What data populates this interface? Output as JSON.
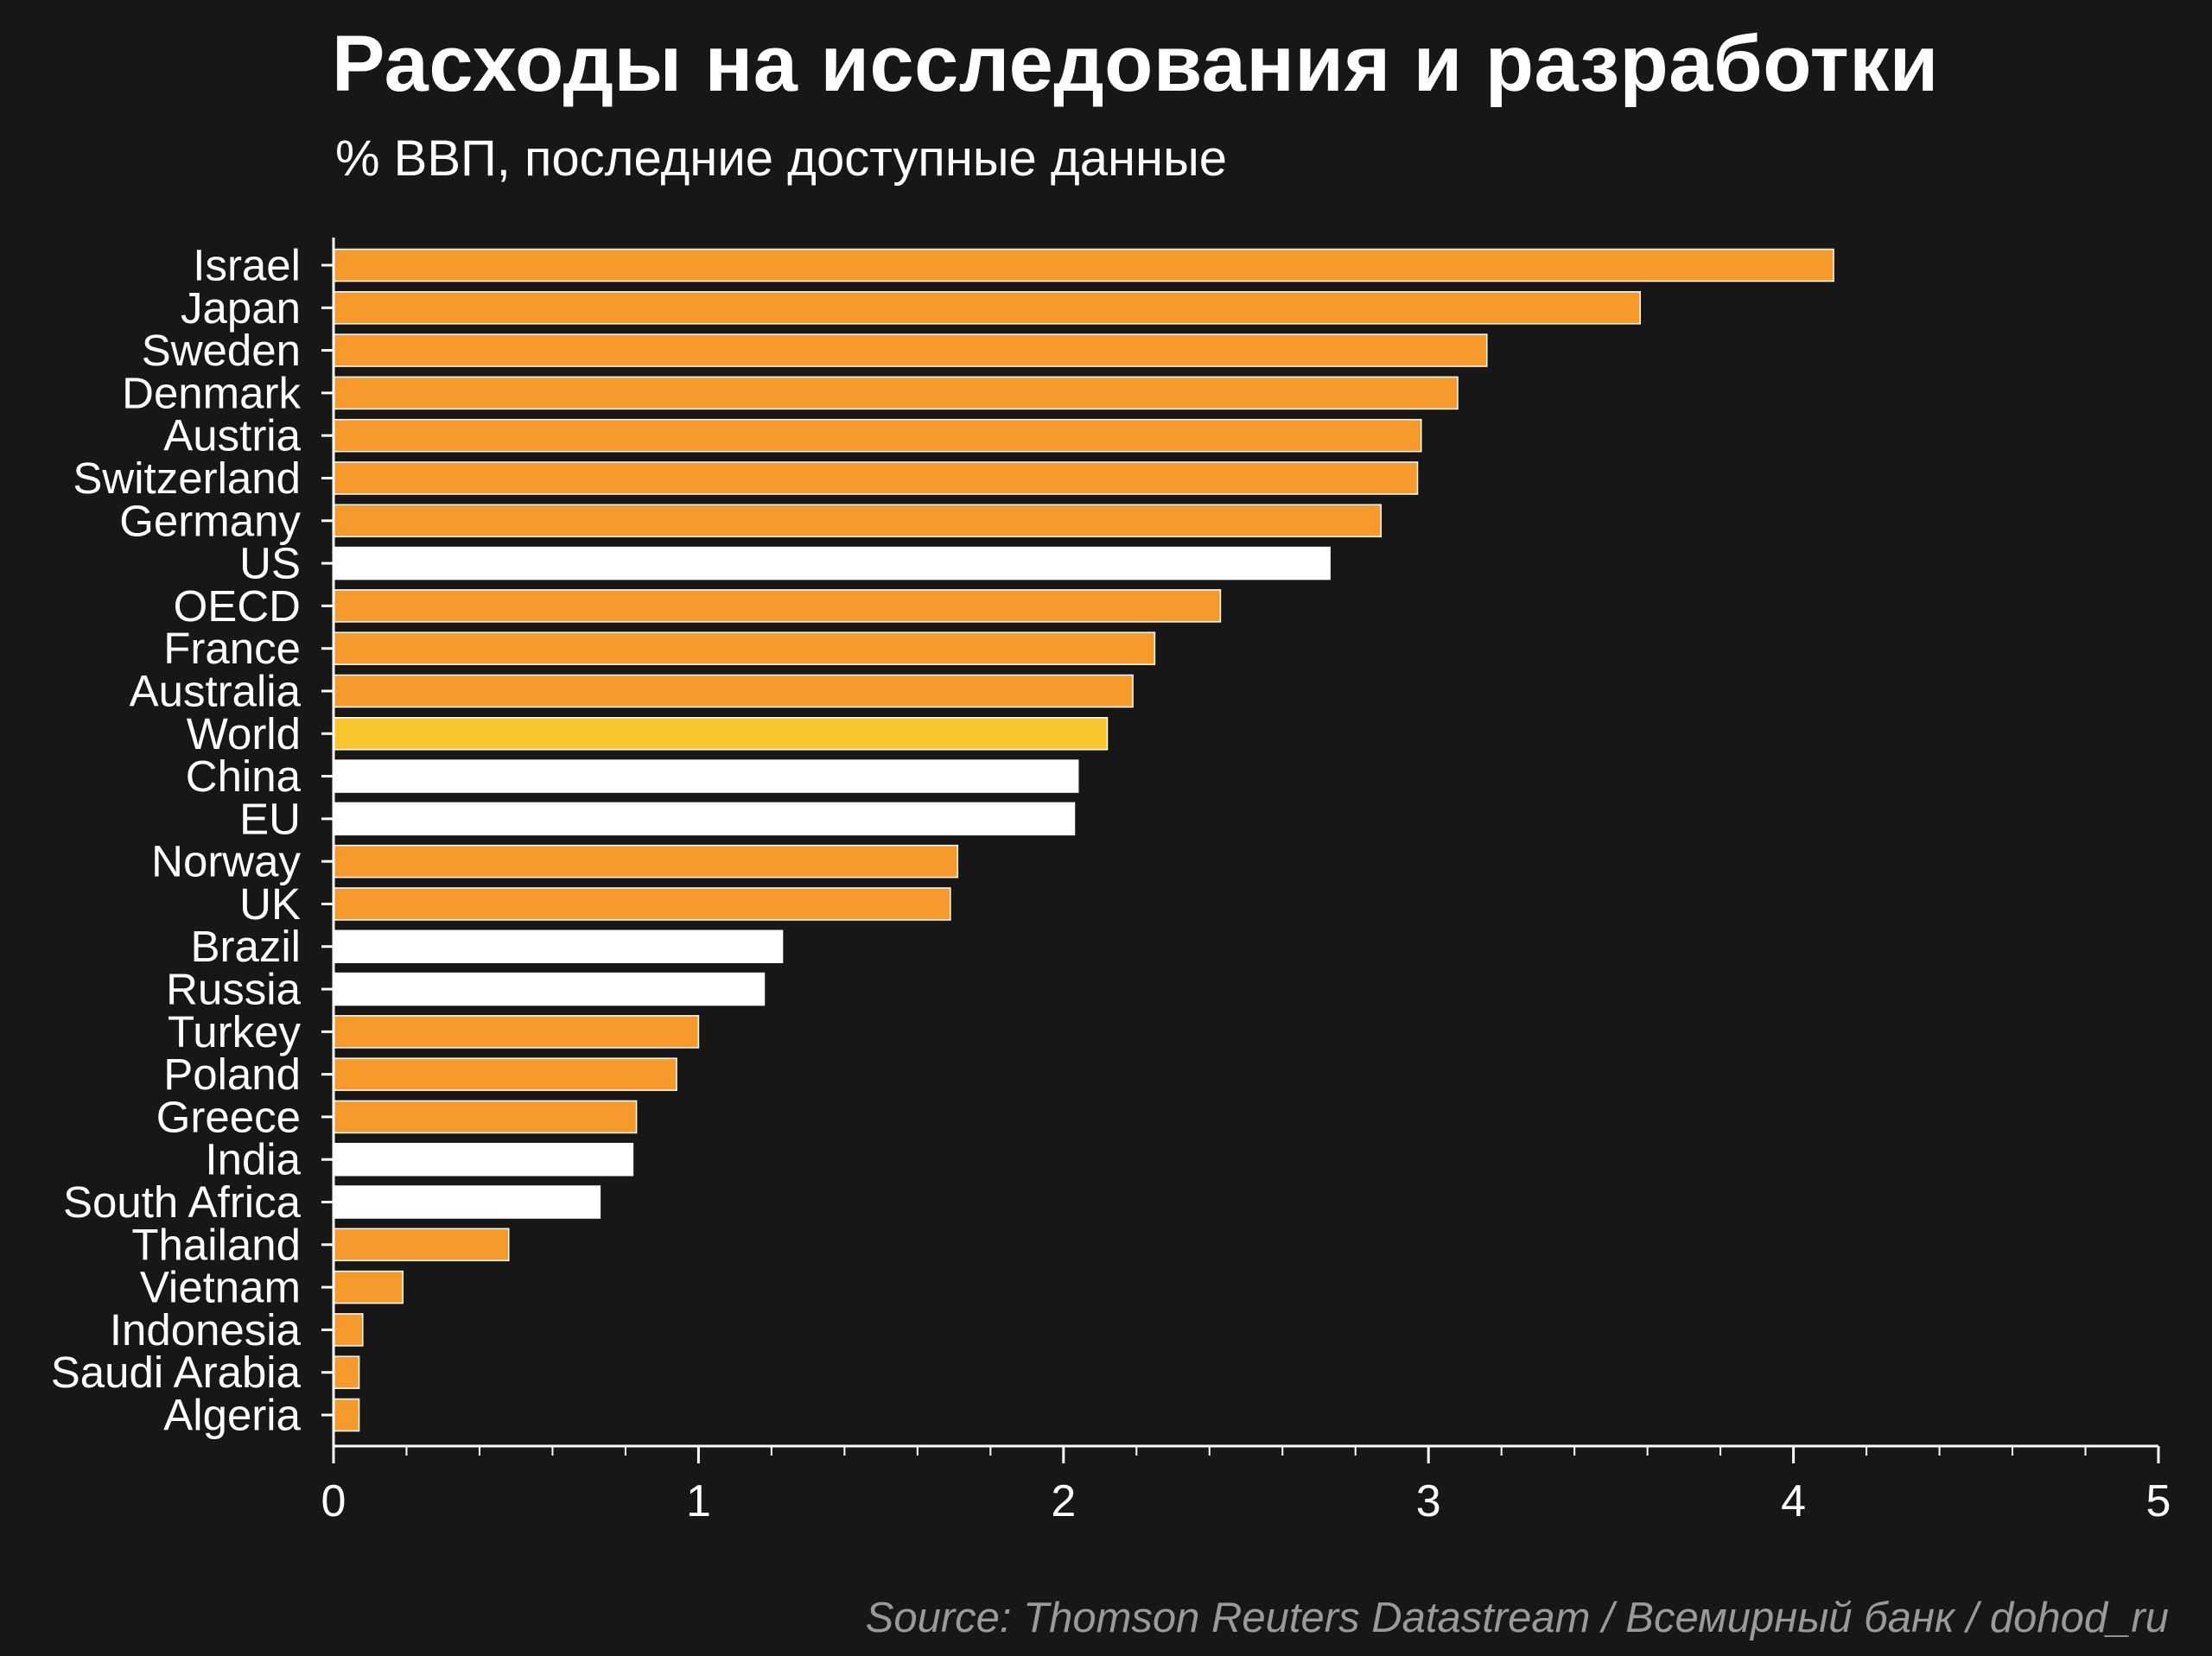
{
  "chart_data": {
    "type": "bar",
    "orientation": "horizontal",
    "title": "Расходы на исследования и разработки",
    "subtitle": "% ВВП, последние доступные данные",
    "source": "Source: Thomson Reuters Datastream / Всемирный банк / dohod_ru",
    "categories": [
      "Israel",
      "Japan",
      "Sweden",
      "Denmark",
      "Austria",
      "Switzerland",
      "Germany",
      "US",
      "OECD",
      "France",
      "Australia",
      "World",
      "China",
      "EU",
      "Norway",
      "UK",
      "Brazil",
      "Russia",
      "Turkey",
      "Poland",
      "Greece",
      "India",
      "South Africa",
      "Thailand",
      "Vietnam",
      "Indonesia",
      "Saudi Arabia",
      "Algeria"
    ],
    "values": [
      4.11,
      3.58,
      3.16,
      3.08,
      2.98,
      2.97,
      2.87,
      2.73,
      2.43,
      2.25,
      2.19,
      2.12,
      2.04,
      2.03,
      1.71,
      1.69,
      1.23,
      1.18,
      1.0,
      0.94,
      0.83,
      0.82,
      0.73,
      0.48,
      0.19,
      0.08,
      0.07,
      0.07
    ],
    "highlight": [
      "orange",
      "orange",
      "orange",
      "orange",
      "orange",
      "orange",
      "orange",
      "white",
      "orange",
      "orange",
      "orange",
      "yellow",
      "white",
      "white",
      "orange",
      "orange",
      "white",
      "white",
      "orange",
      "orange",
      "orange",
      "white",
      "white",
      "orange",
      "orange",
      "orange",
      "orange",
      "orange"
    ],
    "colors": {
      "orange": "#f79a2c",
      "white": "#ffffff",
      "yellow": "#fbc52e",
      "background": "#171717",
      "axis": "#ffffff"
    },
    "xlim": [
      0,
      5
    ],
    "xticks": [
      "0",
      "1",
      "2",
      "3",
      "4",
      "5"
    ],
    "xlabel": "",
    "ylabel": "",
    "grid": false,
    "legend": "none"
  }
}
